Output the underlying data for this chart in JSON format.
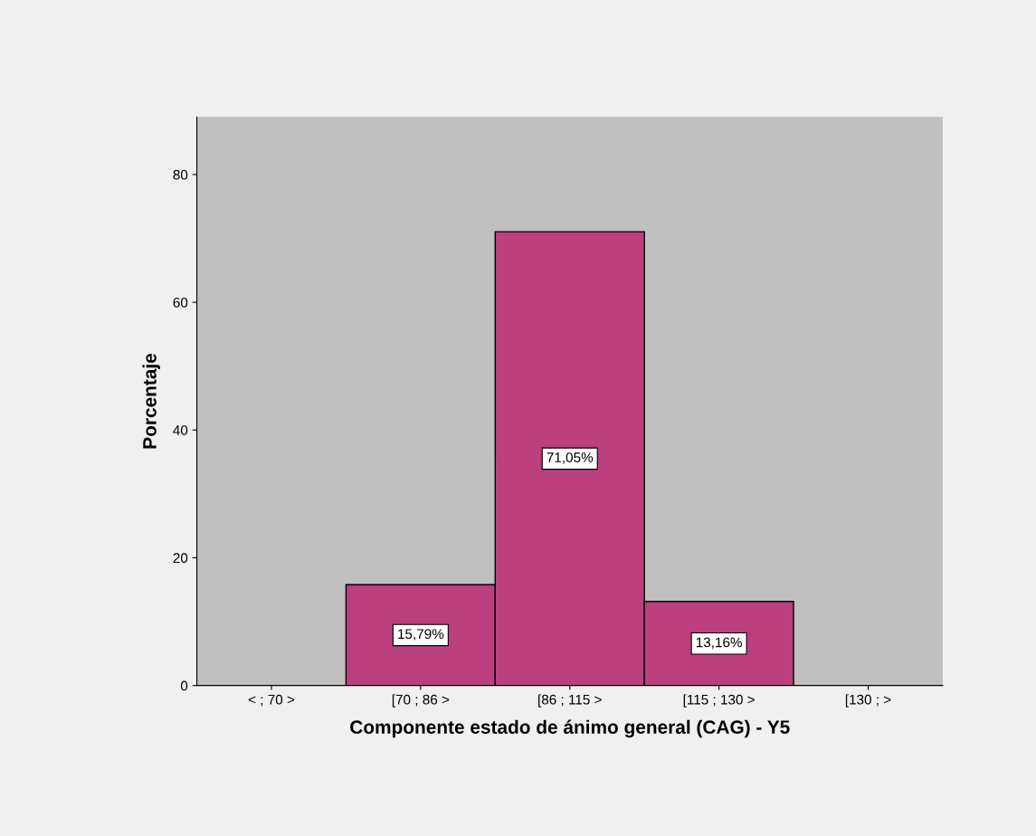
{
  "chart_data": {
    "type": "bar",
    "xlabel": "Componente estado de ánimo general (CAG) - Y5",
    "ylabel": "Porcentaje",
    "categories": [
      "< ; 70 >",
      "[70 ; 86 >",
      "[86 ; 115 >",
      "[115 ; 130 >",
      "[130 ; >"
    ],
    "values": [
      0,
      15.79,
      71.05,
      13.16,
      0
    ],
    "value_labels": [
      null,
      "15,79%",
      "71,05%",
      "13,16%",
      null
    ],
    "color": "#bc3f7e",
    "ylim": [
      0,
      89
    ],
    "yticks": [
      0,
      20,
      40,
      60,
      80
    ],
    "grid": false,
    "legend": false
  }
}
